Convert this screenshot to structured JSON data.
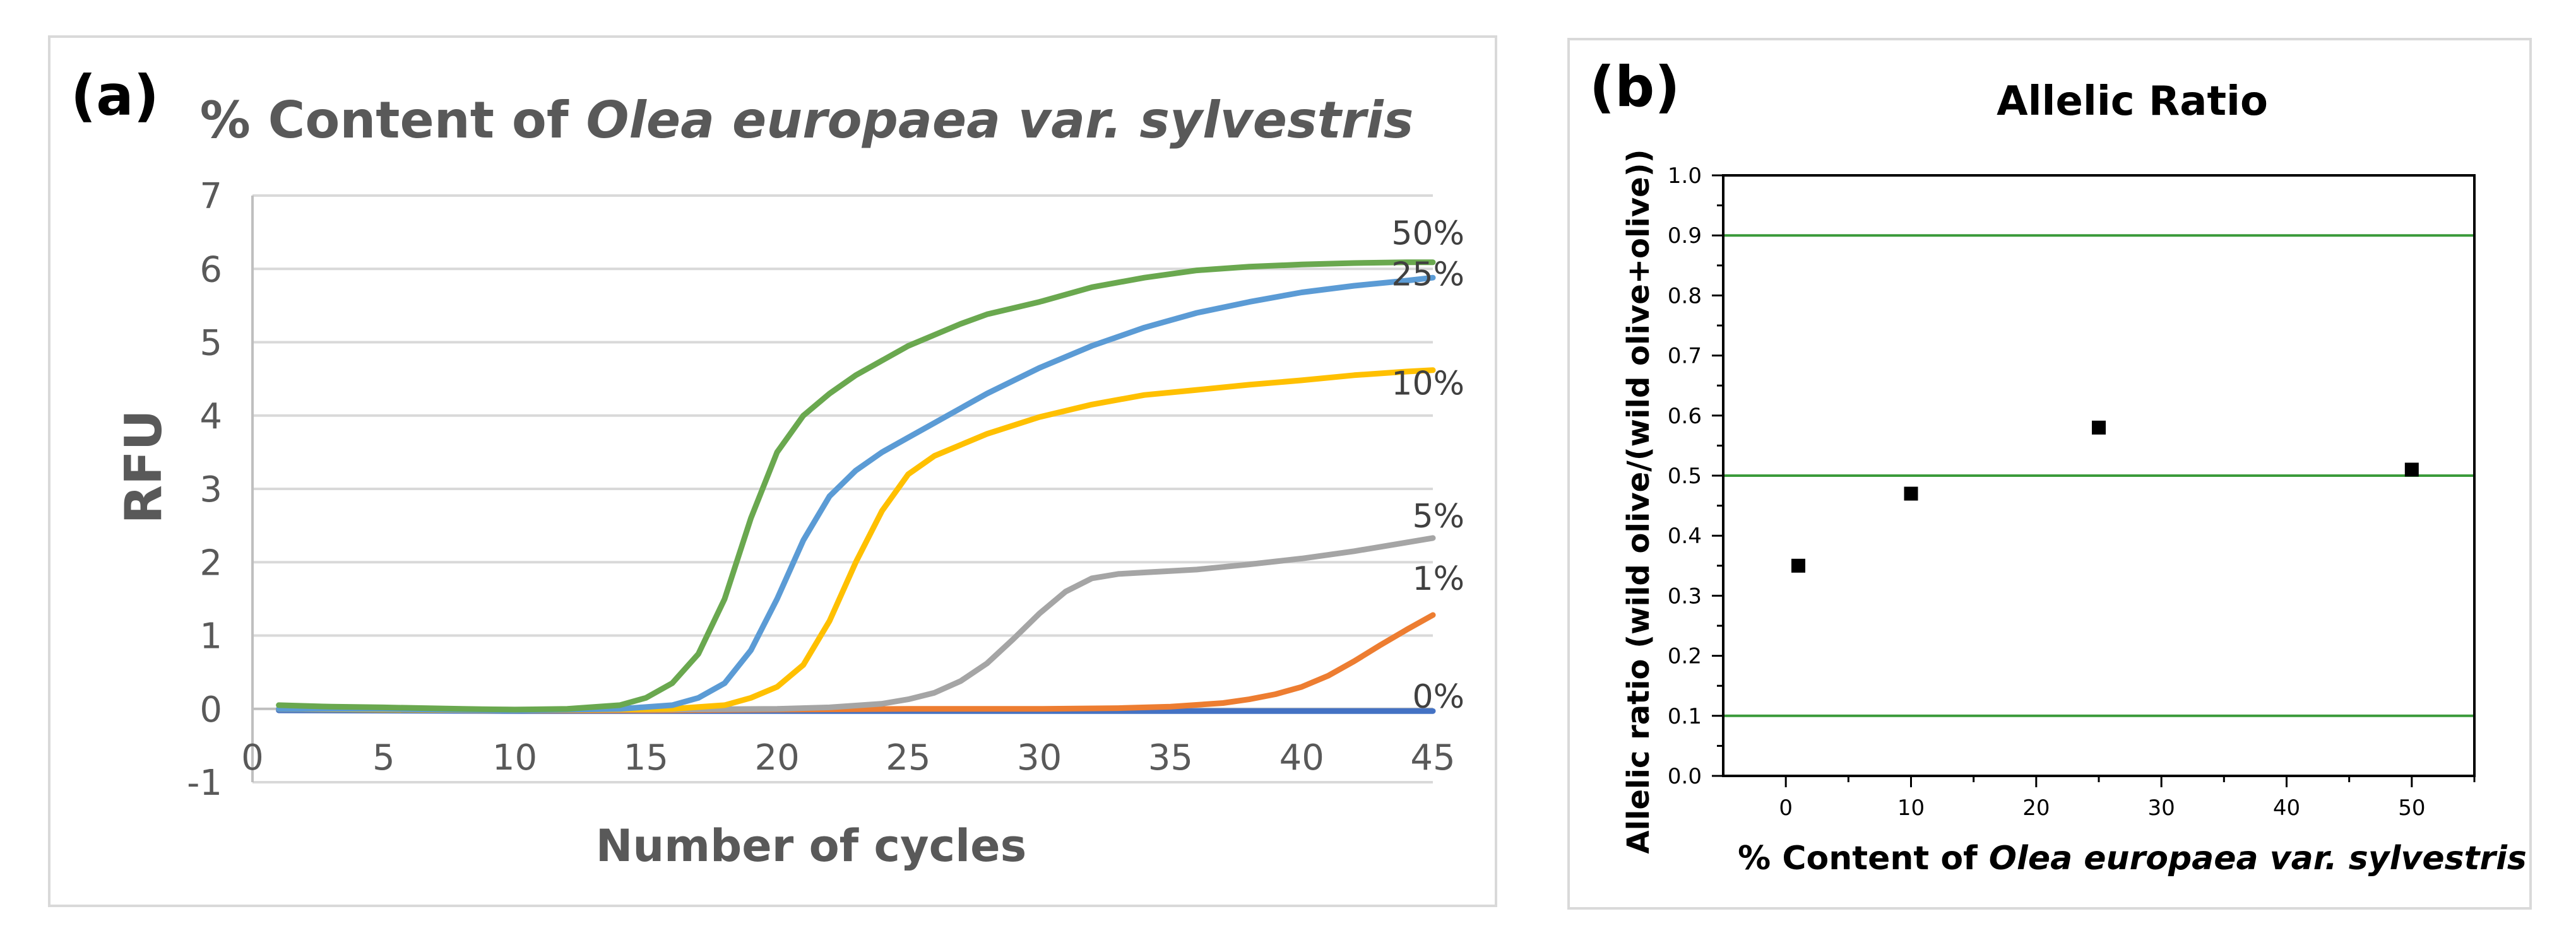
{
  "chart_data": [
    {
      "type": "line",
      "panel_label": "(a)",
      "title": "% Content of Olea europaea var. sylvestris",
      "title_parts": [
        {
          "text": "% Content of ",
          "italic": false
        },
        {
          "text": "Olea europaea var. sylvestris",
          "italic": true
        }
      ],
      "xlabel": "Number of cycles",
      "ylabel": "RFU",
      "xlim": [
        0,
        45
      ],
      "ylim": [
        -1,
        7
      ],
      "xticks": [
        0,
        5,
        10,
        15,
        20,
        25,
        30,
        35,
        40,
        45
      ],
      "yticks": [
        -1,
        0,
        1,
        2,
        3,
        4,
        5,
        6,
        7
      ],
      "grid": "horizontal",
      "legend": "none",
      "series": [
        {
          "name": "50%",
          "color": "#6aa84f",
          "x": [
            1,
            3,
            5,
            8,
            10,
            12,
            14,
            15,
            16,
            17,
            18,
            19,
            20,
            21,
            22,
            23,
            24,
            25,
            26,
            27,
            28,
            30,
            32,
            34,
            36,
            38,
            40,
            42,
            44,
            45
          ],
          "y": [
            0.05,
            0.03,
            0.02,
            0.0,
            -0.01,
            0.0,
            0.05,
            0.15,
            0.35,
            0.75,
            1.5,
            2.6,
            3.5,
            4.0,
            4.3,
            4.55,
            4.75,
            4.95,
            5.1,
            5.25,
            5.38,
            5.55,
            5.75,
            5.88,
            5.98,
            6.03,
            6.06,
            6.08,
            6.09,
            6.09
          ]
        },
        {
          "name": "25%",
          "color": "#5b9bd5",
          "x": [
            1,
            5,
            10,
            14,
            16,
            17,
            18,
            19,
            20,
            21,
            22,
            23,
            24,
            25,
            26,
            28,
            30,
            32,
            34,
            36,
            38,
            40,
            42,
            44,
            45
          ],
          "y": [
            0.0,
            0.0,
            -0.02,
            0.0,
            0.05,
            0.15,
            0.35,
            0.8,
            1.5,
            2.3,
            2.9,
            3.25,
            3.5,
            3.7,
            3.9,
            4.3,
            4.65,
            4.95,
            5.2,
            5.4,
            5.55,
            5.68,
            5.77,
            5.84,
            5.88
          ]
        },
        {
          "name": "10%",
          "color": "#ffc000",
          "x": [
            1,
            5,
            10,
            16,
            18,
            19,
            20,
            21,
            22,
            23,
            24,
            25,
            26,
            28,
            30,
            32,
            34,
            36,
            38,
            40,
            42,
            44,
            45
          ],
          "y": [
            0.0,
            -0.01,
            -0.02,
            0.0,
            0.05,
            0.15,
            0.3,
            0.6,
            1.2,
            2.0,
            2.7,
            3.2,
            3.45,
            3.75,
            3.98,
            4.15,
            4.28,
            4.35,
            4.42,
            4.48,
            4.55,
            4.6,
            4.62
          ]
        },
        {
          "name": "5%",
          "color": "#a5a5a5",
          "x": [
            1,
            5,
            10,
            15,
            20,
            22,
            24,
            25,
            26,
            27,
            28,
            29,
            30,
            31,
            32,
            33,
            34,
            36,
            38,
            40,
            42,
            44,
            45
          ],
          "y": [
            0.0,
            0.0,
            -0.01,
            -0.01,
            0.0,
            0.02,
            0.07,
            0.13,
            0.22,
            0.38,
            0.62,
            0.95,
            1.3,
            1.6,
            1.78,
            1.84,
            1.86,
            1.9,
            1.97,
            2.05,
            2.15,
            2.27,
            2.33
          ]
        },
        {
          "name": "1%",
          "color": "#ed7d31",
          "x": [
            1,
            5,
            10,
            15,
            20,
            25,
            30,
            33,
            35,
            37,
            38,
            39,
            40,
            41,
            42,
            43,
            44,
            45
          ],
          "y": [
            0.0,
            -0.01,
            -0.02,
            -0.02,
            -0.01,
            0.0,
            0.0,
            0.01,
            0.03,
            0.08,
            0.13,
            0.2,
            0.3,
            0.45,
            0.65,
            0.87,
            1.08,
            1.28
          ]
        },
        {
          "name": "0%",
          "color": "#4472c4",
          "x": [
            1,
            10,
            20,
            30,
            40,
            45
          ],
          "y": [
            -0.02,
            -0.03,
            -0.03,
            -0.03,
            -0.03,
            -0.03
          ]
        }
      ]
    },
    {
      "type": "scatter",
      "panel_label": "(b)",
      "title": "Allelic Ratio",
      "xlabel": "% Content of Olea europaea var. sylvestris",
      "xlabel_parts": [
        {
          "text": "% Content of ",
          "italic": false
        },
        {
          "text": "Olea europaea var. sylvestris",
          "italic": true
        }
      ],
      "ylabel": "Allelic ratio (wild olive/(wild olive+olive))",
      "xlim": [
        -5,
        55
      ],
      "ylim": [
        0.0,
        1.0
      ],
      "xticks": [
        0,
        10,
        20,
        30,
        40,
        50
      ],
      "yticks": [
        0.0,
        0.1,
        0.2,
        0.3,
        0.4,
        0.5,
        0.6,
        0.7,
        0.8,
        0.9,
        1.0
      ],
      "tick_labels_y": [
        "0.0",
        "0.1",
        "0.2",
        "0.3",
        "0.4",
        "0.5",
        "0.6",
        "0.7",
        "0.8",
        "0.9",
        "1.0"
      ],
      "reference_lines": [
        0.1,
        0.5,
        0.9
      ],
      "reference_line_color": "#3a9a3a",
      "marker_color": "#000000",
      "series": [
        {
          "x": [
            1,
            10,
            25,
            50
          ],
          "y": [
            0.35,
            0.47,
            0.58,
            0.51
          ]
        }
      ]
    }
  ]
}
